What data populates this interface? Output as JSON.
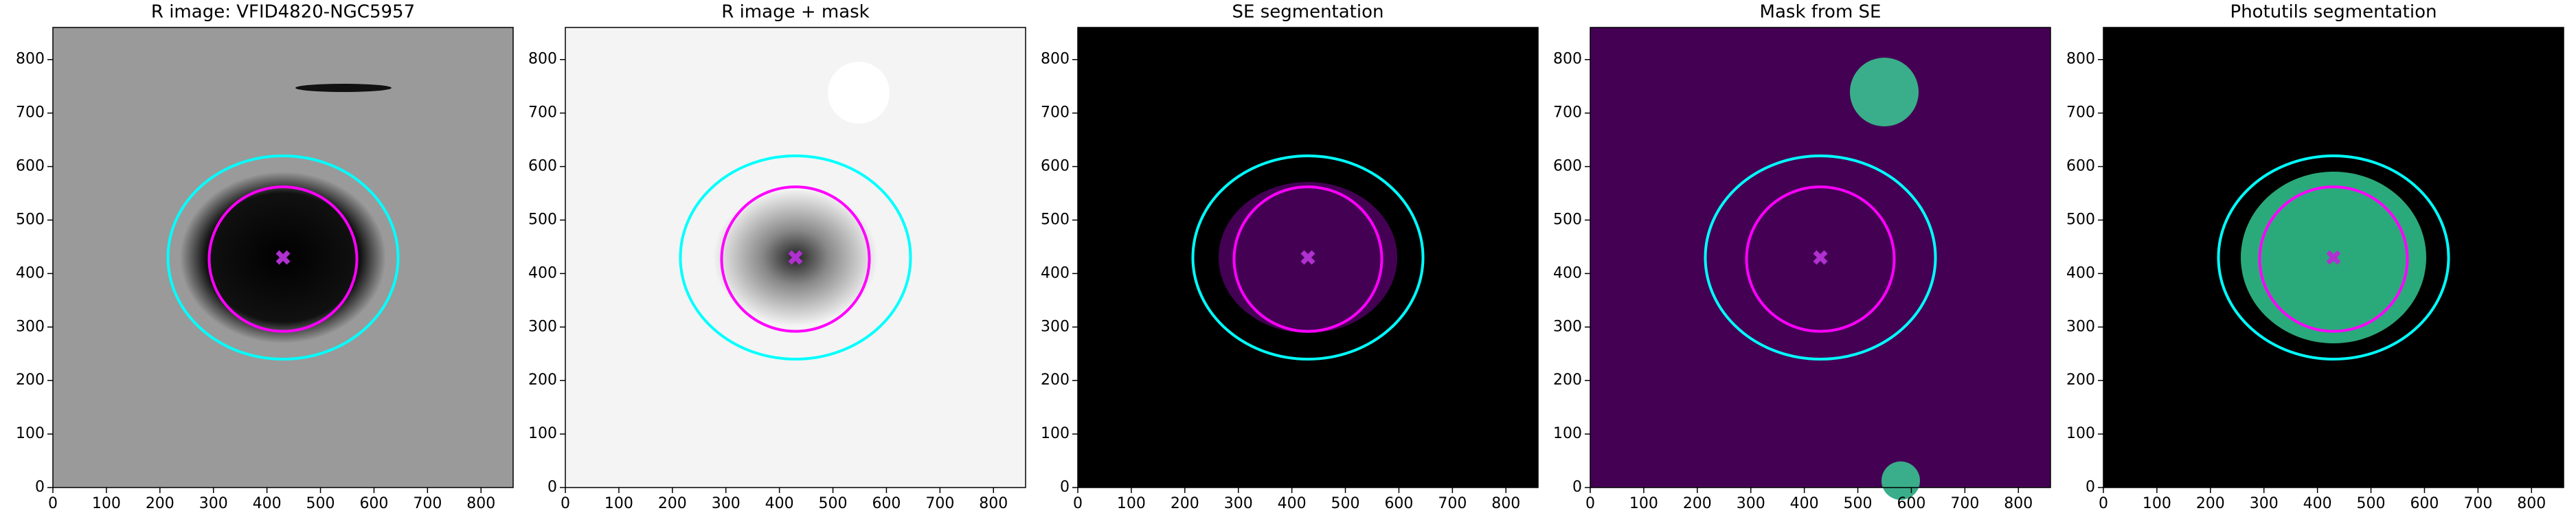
{
  "chart_data": [
    {
      "type": "image",
      "title": "R image: VFID4820-NGC5957",
      "facecolor": "#9a9a9a",
      "xlim": [
        0,
        860
      ],
      "ylim": [
        0,
        860
      ],
      "xticks": [
        0,
        100,
        200,
        300,
        400,
        500,
        600,
        700,
        800
      ],
      "yticks": [
        0,
        100,
        200,
        300,
        400,
        500,
        600,
        700,
        800
      ],
      "ellipses": [
        {
          "x": 430,
          "y": 430,
          "a": 215,
          "b": 190,
          "color": "#00ffff"
        },
        {
          "x": 430,
          "y": 427,
          "a": 138,
          "b": 135,
          "color": "#ff00ff"
        }
      ],
      "markers": [
        {
          "x": 430,
          "y": 430,
          "color": "#b030d0"
        }
      ]
    },
    {
      "type": "image",
      "title": "R image + mask",
      "facecolor": "#f4f4f4",
      "xlim": [
        0,
        860
      ],
      "ylim": [
        0,
        860
      ],
      "xticks": [
        0,
        100,
        200,
        300,
        400,
        500,
        600,
        700,
        800
      ],
      "yticks": [
        0,
        100,
        200,
        300,
        400,
        500,
        600,
        700,
        800
      ],
      "ellipses": [
        {
          "x": 430,
          "y": 430,
          "a": 215,
          "b": 190,
          "color": "#00ffff"
        },
        {
          "x": 430,
          "y": 427,
          "a": 138,
          "b": 135,
          "color": "#ff00ff"
        }
      ],
      "markers": [
        {
          "x": 430,
          "y": 430,
          "color": "#b030d0"
        }
      ]
    },
    {
      "type": "image",
      "title": "SE segmentation",
      "facecolor": "#000000",
      "xlim": [
        0,
        860
      ],
      "ylim": [
        0,
        860
      ],
      "xticks": [
        0,
        100,
        200,
        300,
        400,
        500,
        600,
        700,
        800
      ],
      "yticks": [
        0,
        100,
        200,
        300,
        400,
        500,
        600,
        700,
        800
      ],
      "ellipses": [
        {
          "x": 430,
          "y": 430,
          "a": 215,
          "b": 190,
          "color": "#00ffff"
        },
        {
          "x": 430,
          "y": 427,
          "a": 138,
          "b": 135,
          "color": "#ff00ff"
        }
      ],
      "markers": [
        {
          "x": 430,
          "y": 430,
          "color": "#b030d0"
        }
      ]
    },
    {
      "type": "image",
      "title": "Mask from SE",
      "facecolor": "#440154",
      "xlim": [
        0,
        860
      ],
      "ylim": [
        0,
        860
      ],
      "xticks": [
        0,
        100,
        200,
        300,
        400,
        500,
        600,
        700,
        800
      ],
      "yticks": [
        0,
        100,
        200,
        300,
        400,
        500,
        600,
        700,
        800
      ],
      "ellipses": [
        {
          "x": 430,
          "y": 430,
          "a": 215,
          "b": 190,
          "color": "#00ffff"
        },
        {
          "x": 430,
          "y": 427,
          "a": 138,
          "b": 135,
          "color": "#ff00ff"
        }
      ],
      "markers": [
        {
          "x": 430,
          "y": 430,
          "color": "#b030d0"
        }
      ]
    },
    {
      "type": "image",
      "title": "Photutils segmentation",
      "facecolor": "#000000",
      "xlim": [
        0,
        860
      ],
      "ylim": [
        0,
        860
      ],
      "xticks": [
        0,
        100,
        200,
        300,
        400,
        500,
        600,
        700,
        800
      ],
      "yticks": [
        0,
        100,
        200,
        300,
        400,
        500,
        600,
        700,
        800
      ],
      "ellipses": [
        {
          "x": 430,
          "y": 430,
          "a": 215,
          "b": 190,
          "color": "#00ffff"
        },
        {
          "x": 430,
          "y": 427,
          "a": 138,
          "b": 135,
          "color": "#ff00ff"
        }
      ],
      "markers": [
        {
          "x": 430,
          "y": 430,
          "color": "#b030d0"
        }
      ]
    }
  ]
}
